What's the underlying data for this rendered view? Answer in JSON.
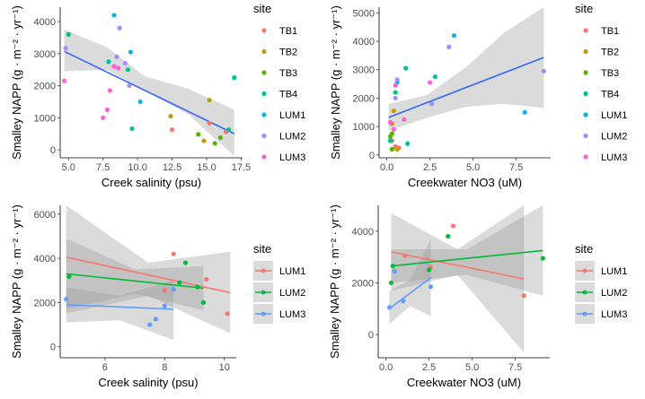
{
  "palette": {
    "TB1": "#F8766D",
    "TB2": "#C49A00",
    "TB3": "#53B400",
    "TB4": "#00C094",
    "LUM1": "#00B6EB",
    "LUM2": "#A58AFF",
    "LUM3": "#FB61D7"
  },
  "palette3": {
    "LUM1": "#F8766D",
    "LUM2": "#00BA38",
    "LUM3": "#619CFF"
  },
  "chart_data": [
    {
      "type": "scatter",
      "xlabel": "Creek salinity (psu)",
      "ylabel_main": "Smalley NAPP",
      "ylabel_units": "(g · m⁻² · yr⁻¹)",
      "xlim": [
        4.4,
        17.6
      ],
      "ylim": [
        -250,
        4450
      ],
      "xticks": [
        5.0,
        7.5,
        10.0,
        12.5,
        15.0,
        17.5
      ],
      "xtick_labels": [
        "5.0",
        "7.5",
        "10.0",
        "12.5",
        "15.0",
        "17.5"
      ],
      "yticks": [
        0,
        1000,
        2000,
        3000,
        4000
      ],
      "legend_title": "site",
      "legend_items": [
        "TB1",
        "TB2",
        "TB3",
        "TB4",
        "LUM1",
        "LUM2",
        "LUM3"
      ],
      "legend_style": "points",
      "points": [
        {
          "site": "TB1",
          "x": 12.5,
          "y": 630
        },
        {
          "site": "TB1",
          "x": 15.2,
          "y": 830
        },
        {
          "site": "TB1",
          "x": 16.4,
          "y": 560
        },
        {
          "site": "TB2",
          "x": 12.4,
          "y": 1050
        },
        {
          "site": "TB2",
          "x": 15.2,
          "y": 1550
        },
        {
          "site": "TB2",
          "x": 14.8,
          "y": 280
        },
        {
          "site": "TB3",
          "x": 14.4,
          "y": 480
        },
        {
          "site": "TB3",
          "x": 15.6,
          "y": 200
        },
        {
          "site": "TB3",
          "x": 16.0,
          "y": 380
        },
        {
          "site": "TB4",
          "x": 5.0,
          "y": 3600
        },
        {
          "site": "TB4",
          "x": 7.9,
          "y": 2750
        },
        {
          "site": "TB4",
          "x": 9.3,
          "y": 2500
        },
        {
          "site": "TB4",
          "x": 9.6,
          "y": 660
        },
        {
          "site": "TB4",
          "x": 16.6,
          "y": 630
        },
        {
          "site": "TB4",
          "x": 17.0,
          "y": 2250
        },
        {
          "site": "LUM1",
          "x": 8.3,
          "y": 4200
        },
        {
          "site": "LUM1",
          "x": 9.5,
          "y": 3050
        },
        {
          "site": "LUM1",
          "x": 10.2,
          "y": 1500
        },
        {
          "site": "LUM2",
          "x": 4.8,
          "y": 3170
        },
        {
          "site": "LUM2",
          "x": 8.5,
          "y": 2900
        },
        {
          "site": "LUM2",
          "x": 8.7,
          "y": 3800
        },
        {
          "site": "LUM2",
          "x": 9.1,
          "y": 2700
        },
        {
          "site": "LUM2",
          "x": 9.4,
          "y": 2000
        },
        {
          "site": "LUM3",
          "x": 4.7,
          "y": 2150
        },
        {
          "site": "LUM3",
          "x": 7.5,
          "y": 1000
        },
        {
          "site": "LUM3",
          "x": 7.8,
          "y": 1250
        },
        {
          "site": "LUM3",
          "x": 8.0,
          "y": 1850
        },
        {
          "site": "LUM3",
          "x": 8.3,
          "y": 2600
        },
        {
          "site": "LUM3",
          "x": 8.6,
          "y": 2550
        }
      ],
      "fits": [
        {
          "color": "#3366FF",
          "x": [
            4.7,
            17.0
          ],
          "y": [
            3070,
            500
          ],
          "band_lower": [
            2450,
            2500,
            1850,
            1100,
            -200
          ],
          "band_upper": [
            3750,
            3200,
            2300,
            1900,
            1250
          ],
          "band_x": [
            4.7,
            7.8,
            10.5,
            13.7,
            17.0
          ]
        }
      ]
    },
    {
      "type": "scatter",
      "xlabel": "Creekwater NO3 (uM)",
      "ylabel_main": "Smalley NAPP",
      "ylabel_units": "(g · m⁻² · yr⁻¹)",
      "xlim": [
        -0.45,
        9.5
      ],
      "ylim": [
        -100,
        5200
      ],
      "xticks": [
        0.0,
        2.5,
        5.0,
        7.5
      ],
      "xtick_labels": [
        "0.0",
        "2.5",
        "5.0",
        "7.5"
      ],
      "yticks": [
        0,
        1000,
        2000,
        3000,
        4000,
        5000
      ],
      "legend_title": "site",
      "legend_items": [
        "TB1",
        "TB2",
        "TB3",
        "TB4",
        "LUM1",
        "LUM2",
        "LUM3"
      ],
      "legend_style": "points",
      "points": [
        {
          "site": "TB1",
          "x": 0.3,
          "y": 500
        },
        {
          "site": "TB1",
          "x": 0.5,
          "y": 300
        },
        {
          "site": "TB1",
          "x": 0.7,
          "y": 250
        },
        {
          "site": "TB2",
          "x": 0.4,
          "y": 1550
        },
        {
          "site": "TB2",
          "x": 0.3,
          "y": 1100
        },
        {
          "site": "TB2",
          "x": 0.6,
          "y": 200
        },
        {
          "site": "TB3",
          "x": 0.2,
          "y": 650
        },
        {
          "site": "TB3",
          "x": 0.3,
          "y": 750
        },
        {
          "site": "TB3",
          "x": 0.3,
          "y": 200
        },
        {
          "site": "TB4",
          "x": 0.5,
          "y": 2200
        },
        {
          "site": "TB4",
          "x": 1.1,
          "y": 3050
        },
        {
          "site": "TB4",
          "x": 2.8,
          "y": 2750
        },
        {
          "site": "TB4",
          "x": 1.2,
          "y": 400
        },
        {
          "site": "TB4",
          "x": 0.2,
          "y": 500
        },
        {
          "site": "LUM1",
          "x": 3.9,
          "y": 4200
        },
        {
          "site": "LUM1",
          "x": 8.0,
          "y": 1500
        },
        {
          "site": "LUM1",
          "x": 0.6,
          "y": 2550
        },
        {
          "site": "LUM2",
          "x": 3.6,
          "y": 3800
        },
        {
          "site": "LUM2",
          "x": 9.1,
          "y": 2950
        },
        {
          "site": "LUM2",
          "x": 0.5,
          "y": 2000
        },
        {
          "site": "LUM2",
          "x": 2.6,
          "y": 1800
        },
        {
          "site": "LUM2",
          "x": 0.6,
          "y": 2650
        },
        {
          "site": "LUM3",
          "x": 2.5,
          "y": 2550
        },
        {
          "site": "LUM3",
          "x": 0.4,
          "y": 900
        },
        {
          "site": "LUM3",
          "x": 1.0,
          "y": 1250
        },
        {
          "site": "LUM3",
          "x": 0.2,
          "y": 1150
        },
        {
          "site": "LUM3",
          "x": 0.5,
          "y": 2450
        }
      ],
      "fits": [
        {
          "color": "#3366FF",
          "x": [
            0.1,
            9.1
          ],
          "y": [
            1320,
            3430
          ],
          "band_lower": [
            850,
            1300,
            1700,
            1800,
            1650
          ],
          "band_upper": [
            1800,
            2100,
            3100,
            4300,
            5200
          ],
          "band_x": [
            0.1,
            2.3,
            4.6,
            6.8,
            9.1
          ]
        }
      ]
    },
    {
      "type": "scatter",
      "xlabel": "Creek salinity (psu)",
      "ylabel_main": "Smalley NAPP",
      "ylabel_units": "(g · m⁻² · yr⁻¹)",
      "xlim": [
        4.5,
        10.4
      ],
      "ylim": [
        -500,
        6400
      ],
      "xticks": [
        6,
        8,
        10
      ],
      "xtick_labels": [
        "6",
        "8",
        "10"
      ],
      "yticks": [
        0,
        2000,
        4000,
        6000
      ],
      "legend_title": "site",
      "legend_items": [
        "LUM1",
        "LUM2",
        "LUM3"
      ],
      "legend_style": "lines",
      "points": [
        {
          "site": "LUM1",
          "x": 8.3,
          "y": 4200
        },
        {
          "site": "LUM1",
          "x": 9.4,
          "y": 3050
        },
        {
          "site": "LUM1",
          "x": 10.1,
          "y": 1500
        },
        {
          "site": "LUM1",
          "x": 8.0,
          "y": 2550
        },
        {
          "site": "LUM2",
          "x": 4.8,
          "y": 3170
        },
        {
          "site": "LUM2",
          "x": 8.7,
          "y": 3800
        },
        {
          "site": "LUM2",
          "x": 8.5,
          "y": 2900
        },
        {
          "site": "LUM2",
          "x": 9.1,
          "y": 2700
        },
        {
          "site": "LUM2",
          "x": 9.3,
          "y": 2000
        },
        {
          "site": "LUM3",
          "x": 4.7,
          "y": 2150
        },
        {
          "site": "LUM3",
          "x": 7.5,
          "y": 1000
        },
        {
          "site": "LUM3",
          "x": 7.7,
          "y": 1250
        },
        {
          "site": "LUM3",
          "x": 8.0,
          "y": 1850
        },
        {
          "site": "LUM3",
          "x": 8.3,
          "y": 2600
        }
      ],
      "fits": [
        {
          "color": "#F8766D",
          "x": [
            4.7,
            10.2
          ],
          "y": [
            4050,
            2450
          ],
          "band_x": [
            4.7,
            7.45,
            10.2
          ],
          "band_lower": [
            1500,
            2300,
            600
          ],
          "band_upper": [
            6400,
            3800,
            4300
          ]
        },
        {
          "color": "#00BA38",
          "x": [
            4.7,
            9.3
          ],
          "y": [
            3300,
            2650
          ],
          "band_x": [
            4.7,
            7.0,
            9.3
          ],
          "band_lower": [
            1700,
            2400,
            1650
          ],
          "band_upper": [
            4900,
            3500,
            3650
          ]
        },
        {
          "color": "#619CFF",
          "x": [
            4.7,
            8.3
          ],
          "y": [
            1900,
            1700
          ],
          "band_x": [
            4.7,
            6.5,
            8.3
          ],
          "band_lower": [
            1100,
            1200,
            300
          ],
          "band_upper": [
            2700,
            2300,
            3000
          ]
        }
      ]
    },
    {
      "type": "scatter",
      "xlabel": "Creekwater NO3 (uM)",
      "ylabel_main": "Smalley NAPP",
      "ylabel_units": "(g · m⁻² · yr⁻¹)",
      "xlim": [
        -0.45,
        9.5
      ],
      "ylim": [
        -900,
        5000
      ],
      "xticks": [
        0.0,
        2.5,
        5.0,
        7.5
      ],
      "xtick_labels": [
        "0.0",
        "2.5",
        "5.0",
        "7.5"
      ],
      "yticks": [
        0,
        2000,
        4000
      ],
      "legend_title": "site",
      "legend_items": [
        "LUM1",
        "LUM2",
        "LUM3"
      ],
      "legend_style": "lines",
      "points": [
        {
          "site": "LUM1",
          "x": 3.9,
          "y": 4200
        },
        {
          "site": "LUM1",
          "x": 8.0,
          "y": 1500
        },
        {
          "site": "LUM1",
          "x": 1.1,
          "y": 3050
        },
        {
          "site": "LUM1",
          "x": 2.6,
          "y": 2600
        },
        {
          "site": "LUM2",
          "x": 3.6,
          "y": 3800
        },
        {
          "site": "LUM2",
          "x": 9.1,
          "y": 2950
        },
        {
          "site": "LUM2",
          "x": 0.4,
          "y": 2650
        },
        {
          "site": "LUM2",
          "x": 2.5,
          "y": 2500
        },
        {
          "site": "LUM2",
          "x": 0.3,
          "y": 2000
        },
        {
          "site": "LUM3",
          "x": 0.2,
          "y": 1050
        },
        {
          "site": "LUM3",
          "x": 1.0,
          "y": 1300
        },
        {
          "site": "LUM3",
          "x": 2.6,
          "y": 1850
        },
        {
          "site": "LUM3",
          "x": 0.5,
          "y": 2450
        }
      ],
      "fits": [
        {
          "color": "#F8766D",
          "x": [
            0.3,
            8.0
          ],
          "y": [
            3200,
            2150
          ],
          "band_x": [
            0.3,
            4.15,
            8.0
          ],
          "band_lower": [
            1700,
            2300,
            -700
          ],
          "band_upper": [
            4700,
            3300,
            5000
          ]
        },
        {
          "color": "#00BA38",
          "x": [
            0.3,
            9.1
          ],
          "y": [
            2650,
            3250
          ],
          "band_x": [
            0.3,
            4.7,
            9.1
          ],
          "band_lower": [
            2000,
            2300,
            1500
          ],
          "band_upper": [
            3300,
            3300,
            5000
          ]
        },
        {
          "color": "#619CFF",
          "x": [
            0.2,
            2.6
          ],
          "y": [
            1000,
            2200
          ],
          "band_x": [
            0.2,
            1.4,
            2.6
          ],
          "band_lower": [
            400,
            1100,
            700
          ],
          "band_upper": [
            1700,
            2100,
            3700
          ]
        }
      ]
    }
  ]
}
